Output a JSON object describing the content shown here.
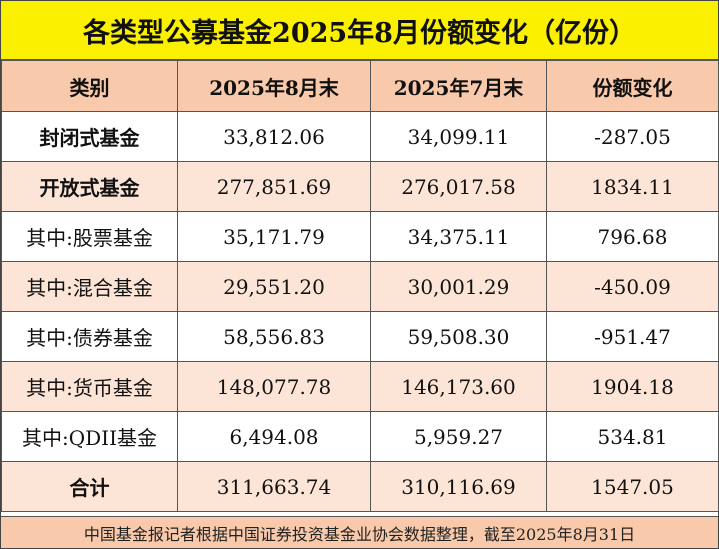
{
  "title": "各类型公募基金2025年8月份额变化（亿份）",
  "headers": [
    "类别",
    "2025年8月末",
    "2025年7月末",
    "份额变化"
  ],
  "rows": [
    [
      "封闭式基金",
      "33,812.06",
      "34,099.11",
      "-287.05"
    ],
    [
      "开放式基金",
      "277,851.69",
      "276,017.58",
      "1834.11"
    ],
    [
      "其中:股票基金",
      "35,171.79",
      "34,375.11",
      "796.68"
    ],
    [
      "其中:混合基金",
      "29,551.20",
      "30,001.29",
      "-450.09"
    ],
    [
      "其中:债券基金",
      "58,556.83",
      "59,508.30",
      "-951.47"
    ],
    [
      "其中:货币基金",
      "148,077.78",
      "146,173.60",
      "1904.18"
    ],
    [
      "其中:QDII基金",
      "6,494.08",
      "5,959.27",
      "534.81"
    ],
    [
      "合计",
      "311,663.74",
      "310,116.69",
      "1547.05"
    ]
  ],
  "footer": "中国基金报记者根据中国证券投资基金业协会数据整理，截至2025年8月31日",
  "colors": {
    "title_bg": "#fbf000",
    "header_bg": "#f8c9aa",
    "stripe_bg": "#fce5d6",
    "footer_bg": "#f8c9aa"
  }
}
